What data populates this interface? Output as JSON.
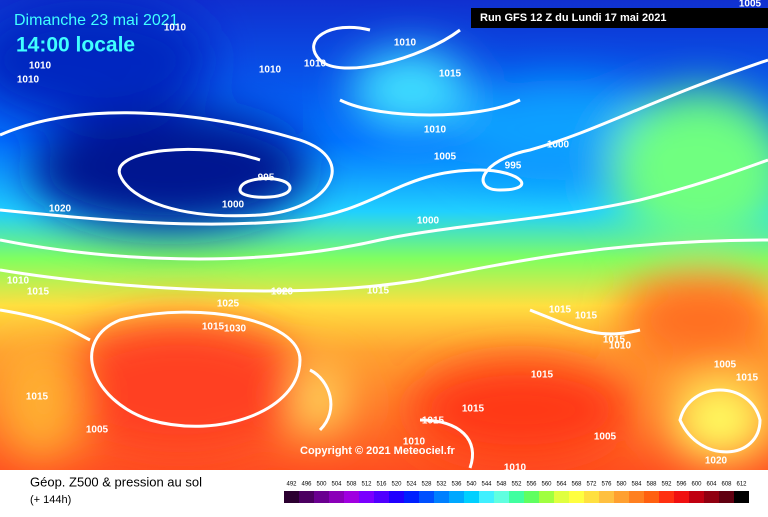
{
  "header": {
    "date": "Dimanche 23 mai 2021",
    "time": "14:00 locale",
    "run": "Run GFS 12 Z du Lundi 17 mai 2021"
  },
  "copyright": "Copyright © 2021 Meteociel.fr",
  "footer": {
    "title": "Géop. Z500 & pression au sol",
    "lead": "(+ 144h)"
  },
  "isobar_labels": [
    1010,
    1005,
    1010,
    1010,
    1010,
    1010,
    1010,
    1015,
    1010,
    1005,
    995,
    1000,
    995,
    1000,
    1020,
    1000,
    1010,
    1015,
    1020,
    1015,
    1025,
    1015,
    1030,
    1015,
    1015,
    1015,
    1015,
    1015,
    1005,
    1005,
    1015,
    1015,
    1015,
    1010,
    1005,
    1020,
    1010,
    1010
  ],
  "scale": {
    "values": [
      492,
      496,
      500,
      504,
      508,
      512,
      516,
      520,
      524,
      528,
      532,
      536,
      540,
      544,
      548,
      552,
      556,
      560,
      564,
      568,
      572,
      576,
      580,
      584,
      588,
      592,
      596,
      600,
      604,
      608,
      612
    ],
    "colors": [
      "#2b0030",
      "#4b0060",
      "#6a0090",
      "#8a00b8",
      "#a000e0",
      "#7a00ff",
      "#5000ff",
      "#2000ff",
      "#0020ff",
      "#0050ff",
      "#0080ff",
      "#00a8ff",
      "#00d0ff",
      "#40f0ff",
      "#60ffe0",
      "#40ffa0",
      "#60ff60",
      "#a0ff40",
      "#e0ff40",
      "#ffff40",
      "#ffe040",
      "#ffc040",
      "#ffa030",
      "#ff8020",
      "#ff6010",
      "#ff3010",
      "#f01010",
      "#c00010",
      "#900010",
      "#600010",
      "#000000"
    ]
  }
}
